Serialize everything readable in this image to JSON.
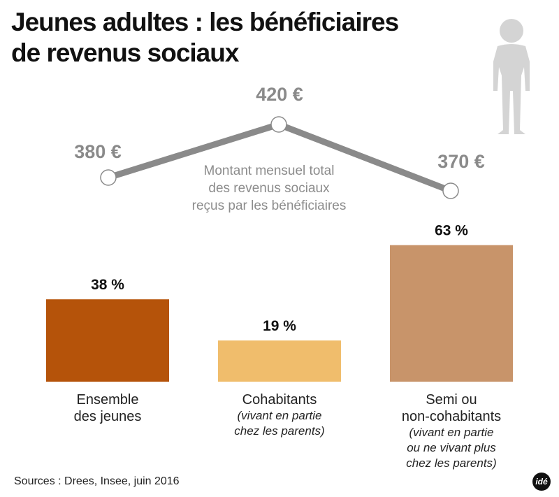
{
  "title_line1": "Jeunes adultes : les bénéficiaires",
  "title_line2": "de revenus sociaux",
  "chart_data": [
    {
      "type": "bar",
      "categories": [
        "Ensemble des jeunes",
        "Cohabitants",
        "Semi ou non-cohabitants"
      ],
      "values": [
        38,
        19,
        63
      ],
      "data_labels": [
        "38 %",
        "19 %",
        "63 %"
      ],
      "colors": [
        "#b5530a",
        "#f0bd6c",
        "#c8946a"
      ],
      "unit": "%"
    },
    {
      "type": "line",
      "categories": [
        "Ensemble des jeunes",
        "Cohabitants",
        "Semi ou non-cohabitants"
      ],
      "values": [
        380,
        420,
        370
      ],
      "data_labels": [
        "380 €",
        "420 €",
        "370 €"
      ],
      "annotation": [
        "Montant mensuel total",
        "des revenus sociaux",
        "reçus par les bénéficiaires"
      ],
      "color": "#8a8a8a"
    }
  ],
  "categories": [
    {
      "label": [
        "Ensemble",
        "des jeunes"
      ],
      "sub": []
    },
    {
      "label": [
        "Cohabitants"
      ],
      "sub": [
        "(vivant en partie",
        "chez les parents)"
      ]
    },
    {
      "label": [
        "Semi ou",
        "non-cohabitants"
      ],
      "sub": [
        "(vivant en partie",
        "ou ne vivant plus",
        "chez les parents)"
      ]
    }
  ],
  "source": "Sources : Drees, Insee, juin 2016",
  "logo": "idé",
  "icon": "person-icon"
}
